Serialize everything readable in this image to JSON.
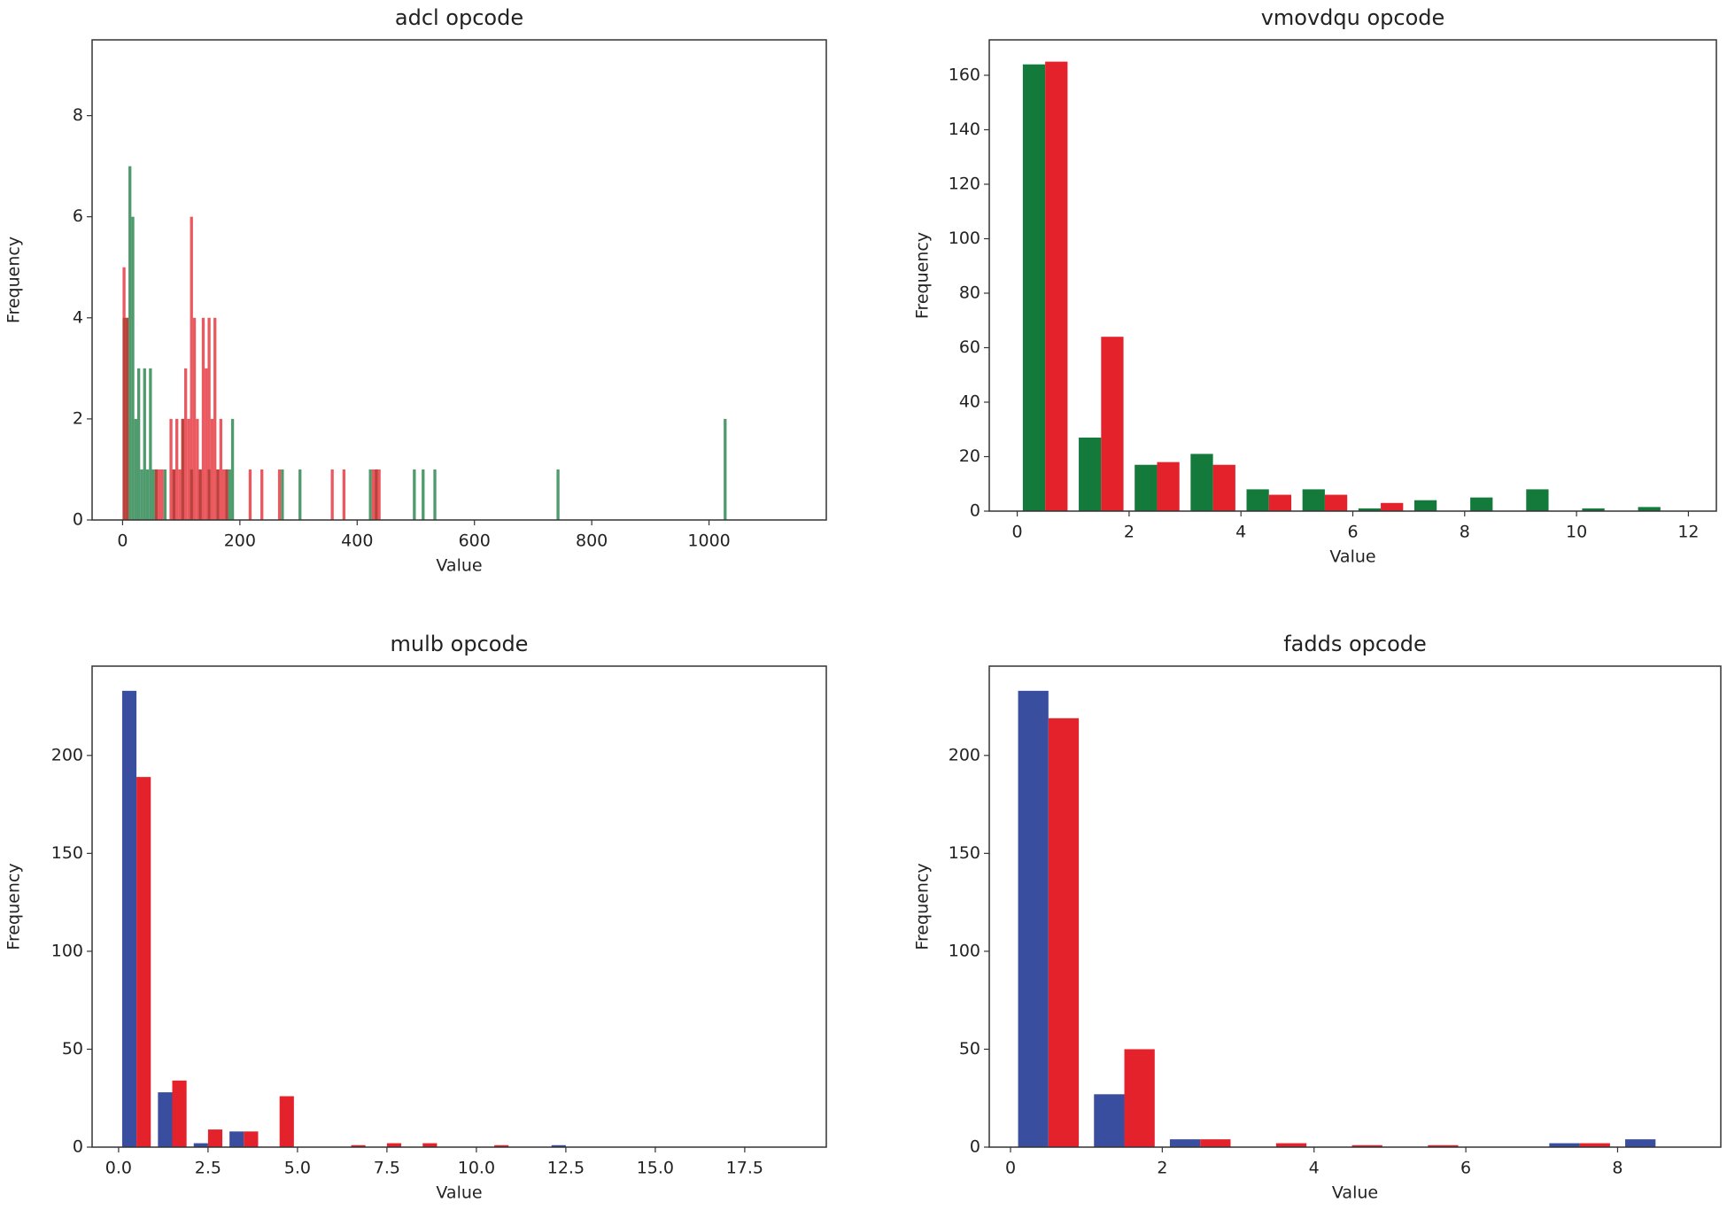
{
  "chart_data": [
    {
      "type": "histogram",
      "title": "adcl opcode",
      "xlabel": "Value",
      "ylabel": "Frequency",
      "xlim": [
        -52,
        1200
      ],
      "ylim": [
        0,
        9.5
      ],
      "xticks": [
        0,
        200,
        400,
        600,
        800,
        1000
      ],
      "yticks": [
        0,
        2,
        4,
        6,
        8
      ],
      "series": [
        {
          "color": "#147a3c",
          "bins": [
            0,
            5,
            10,
            15,
            20,
            25,
            30,
            35,
            40,
            45,
            50,
            55,
            60,
            70,
            75,
            85,
            90,
            100,
            105,
            115,
            120,
            130,
            135,
            145,
            150,
            160,
            165,
            175,
            180,
            185,
            190,
            270,
            275,
            300,
            305,
            420,
            425,
            430,
            435,
            495,
            500,
            510,
            515,
            530,
            535,
            740,
            745,
            1025,
            1030
          ],
          "values": [
            4,
            4,
            7,
            6,
            2,
            3,
            1,
            3,
            1,
            3,
            1,
            1,
            0,
            1,
            0,
            1,
            0,
            2,
            0,
            1,
            0,
            1,
            0,
            1,
            0,
            1,
            0,
            1,
            1,
            2,
            0,
            1,
            0,
            1,
            0,
            1,
            0,
            1,
            0,
            1,
            0,
            1,
            0,
            1,
            0,
            1,
            0,
            2
          ]
        },
        {
          "color": "#e3222b",
          "bins": [
            0,
            5,
            10,
            55,
            60,
            65,
            70,
            80,
            85,
            90,
            95,
            100,
            105,
            110,
            115,
            120,
            125,
            130,
            135,
            140,
            145,
            150,
            155,
            160,
            165,
            170,
            175,
            180,
            215,
            220,
            235,
            240,
            265,
            270,
            355,
            360,
            375,
            380,
            425,
            430,
            435,
            440
          ],
          "values": [
            5,
            4,
            0,
            1,
            1,
            1,
            0,
            2,
            1,
            2,
            1,
            2,
            3,
            2,
            6,
            4,
            2,
            1,
            4,
            3,
            4,
            2,
            4,
            1,
            2,
            1,
            1,
            0,
            1,
            0,
            1,
            0,
            1,
            0,
            1,
            0,
            1,
            0,
            1,
            1,
            1
          ]
        }
      ]
    },
    {
      "type": "histogram",
      "title": "vmovdqu opcode",
      "xlabel": "Value",
      "ylabel": "Frequency",
      "xlim": [
        -0.5,
        12.5
      ],
      "ylim": [
        0,
        173
      ],
      "xticks": [
        0,
        2,
        4,
        6,
        8,
        10,
        12
      ],
      "yticks": [
        0,
        20,
        40,
        60,
        80,
        100,
        120,
        140,
        160
      ],
      "bins": [
        0,
        1,
        2,
        3,
        4,
        5,
        6,
        7,
        8,
        9,
        10,
        11,
        12
      ],
      "series": [
        {
          "color": "#147a3c",
          "values": [
            164,
            27,
            17,
            21,
            8,
            8,
            1,
            4,
            5,
            8,
            1,
            1.5
          ]
        },
        {
          "color": "#e3222b",
          "values": [
            165,
            64,
            18,
            17,
            6,
            6,
            3,
            0,
            0,
            0,
            0,
            0
          ]
        }
      ]
    },
    {
      "type": "histogram",
      "title": "mulb opcode",
      "xlabel": "Value",
      "ylabel": "Frequency",
      "xlim": [
        -0.74,
        19.78
      ],
      "ylim": [
        0,
        245.6
      ],
      "xticks": [
        {
          "value": 0,
          "label": "0.0"
        },
        2.5,
        {
          "value": 5,
          "label": "5.0"
        },
        7.5,
        {
          "value": 10,
          "label": "10.0"
        },
        12.5,
        {
          "value": 15,
          "label": "15.0"
        },
        17.5
      ],
      "yticks": [
        0,
        50,
        100,
        150,
        200
      ],
      "bins": [
        0,
        1,
        2,
        3,
        4,
        5,
        6,
        7,
        8,
        9,
        10,
        11,
        12,
        13,
        14,
        15,
        16,
        17,
        18,
        19
      ],
      "series": [
        {
          "color": "#3a4ea0",
          "values": [
            233,
            28,
            2,
            8,
            0,
            0,
            0,
            0,
            0,
            0,
            0,
            0,
            1,
            0,
            0,
            0,
            0,
            0,
            0
          ]
        },
        {
          "color": "#e3222b",
          "values": [
            189,
            34,
            9,
            8,
            26,
            0,
            1,
            2,
            2,
            0,
            1,
            0,
            0,
            0,
            0,
            0,
            0,
            0,
            0
          ]
        }
      ]
    },
    {
      "type": "histogram",
      "title": "fadds opcode",
      "xlabel": "Value",
      "ylabel": "Frequency",
      "xlim": [
        -0.28,
        9.36
      ],
      "ylim": [
        0,
        245.6
      ],
      "xticks": [
        0,
        2,
        4,
        6,
        8
      ],
      "yticks": [
        0,
        50,
        100,
        150,
        200
      ],
      "bins": [
        0,
        1,
        2,
        3,
        4,
        5,
        6,
        7,
        8,
        9
      ],
      "series": [
        {
          "color": "#3a4ea0",
          "values": [
            233,
            27,
            4,
            0,
            0,
            0,
            0,
            2,
            4
          ]
        },
        {
          "color": "#e3222b",
          "values": [
            219,
            50,
            4,
            2,
            1,
            1,
            0,
            2,
            0
          ]
        }
      ]
    }
  ]
}
